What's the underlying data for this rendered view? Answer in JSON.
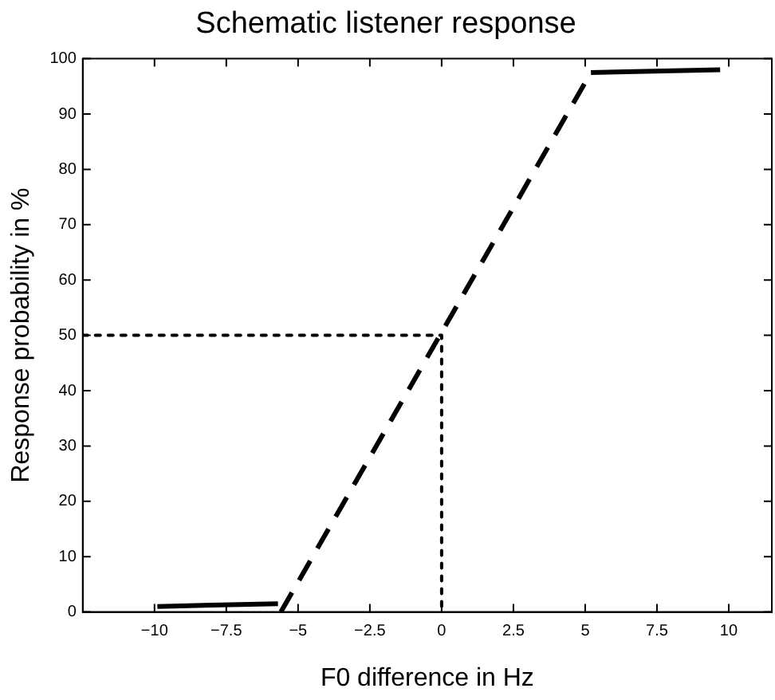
{
  "chart_data": {
    "type": "line",
    "title": "Schematic listener response",
    "xlabel": "F0 difference in Hz",
    "ylabel": "Response probability in %",
    "xlim": [
      -12.5,
      11.5
    ],
    "ylim": [
      0,
      100
    ],
    "xticks": [
      {
        "value": -10,
        "label": "−10"
      },
      {
        "value": -7.5,
        "label": "−7.5"
      },
      {
        "value": -5,
        "label": "−5"
      },
      {
        "value": -2.5,
        "label": "−2.5"
      },
      0,
      2.5,
      5,
      7.5,
      10
    ],
    "yticks": [
      0,
      10,
      20,
      30,
      40,
      50,
      60,
      70,
      80,
      90,
      100
    ],
    "grid": false,
    "legend": false,
    "marker": "none",
    "series": [
      {
        "color": "#000000",
        "line_style": "solid",
        "x": [
          -9.9,
          -5.7
        ],
        "values": [
          1,
          1.5
        ]
      },
      {
        "color": "#000000",
        "line_style": "dashed",
        "x": [
          -5.6,
          5.2
        ],
        "values": [
          0,
          97.5
        ]
      },
      {
        "color": "#000000",
        "line_style": "solid",
        "x": [
          5.2,
          9.7
        ],
        "values": [
          97.5,
          98
        ]
      },
      {
        "color": "#000000",
        "line_style": "dotted",
        "x": [
          -12.5,
          0,
          0
        ],
        "values": [
          50,
          50,
          0
        ]
      }
    ]
  }
}
